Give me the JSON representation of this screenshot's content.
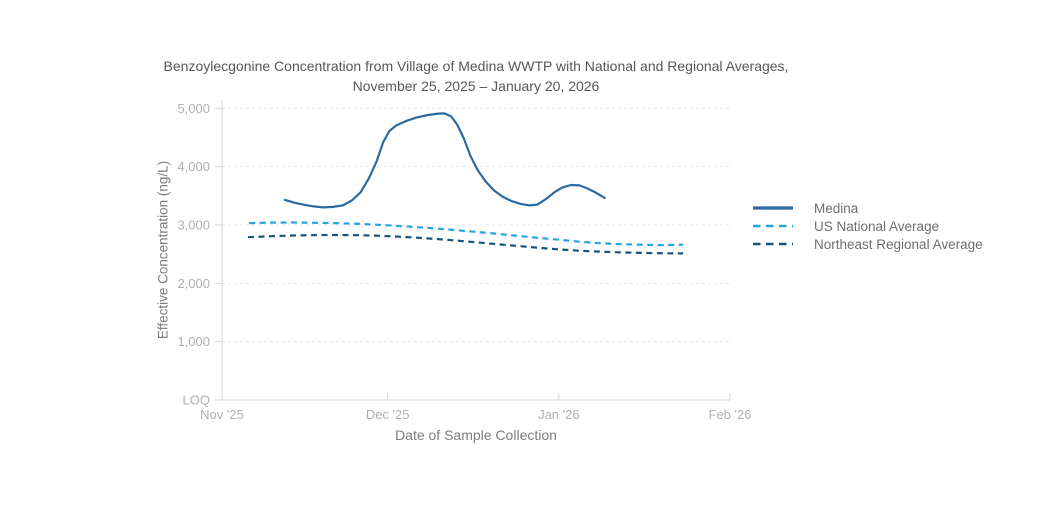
{
  "chart": {
    "title_line1": "Benzoylecgonine Concentration from Village of Medina WWTP with National and Regional Averages,",
    "title_line2": "November 25, 2025 – January 20, 2026",
    "x_axis_title": "Date of Sample Collection",
    "y_axis_title": "Effective Concentration (ng/L)"
  },
  "colors": {
    "medina_line": "#2a6a9e",
    "us_national_line": "#25a4dd",
    "northeast_line": "#14567d",
    "gridline": "#e4e4e4",
    "axis_line": "#d6d6d6",
    "tick_label": "#b0b0b0",
    "axis_title": "#7d7d7d",
    "title_text": "#575757",
    "legend_text": "#6e6e6e",
    "background": "#ffffff"
  },
  "chart_data": {
    "type": "line",
    "title": "Benzoylecgonine Concentration from Village of Medina WWTP with National and Regional Averages, November 25, 2025 – January 20, 2026",
    "xlabel": "Date of Sample Collection",
    "ylabel": "Effective Concentration (ng/L)",
    "x_unit": "days since 2025-11-01",
    "xlim": [
      0,
      92
    ],
    "ylim": [
      0,
      5000
    ],
    "grid": "horizontal-dashed",
    "legend_position": "right",
    "x_ticks": [
      {
        "d": 0,
        "label": "Nov '25"
      },
      {
        "d": 30,
        "label": "Dec '25"
      },
      {
        "d": 61,
        "label": "Jan '26"
      },
      {
        "d": 92,
        "label": "Feb '26"
      }
    ],
    "y_ticks": [
      {
        "v": 0,
        "label": "LOQ"
      },
      {
        "v": 1000,
        "label": "1,000"
      },
      {
        "v": 2000,
        "label": "2,000"
      },
      {
        "v": 3000,
        "label": "3,000"
      },
      {
        "v": 4000,
        "label": "4,000"
      },
      {
        "v": 5000,
        "label": "5,000"
      }
    ],
    "series": [
      {
        "name": "Medina",
        "color": "#2a6a9e",
        "dash": "solid",
        "points": [
          [
            11.4,
            3430
          ],
          [
            13.2,
            3380
          ],
          [
            15.0,
            3345
          ],
          [
            16.6,
            3318
          ],
          [
            18.3,
            3302
          ],
          [
            20.1,
            3310
          ],
          [
            21.9,
            3335
          ],
          [
            23.5,
            3420
          ],
          [
            25.1,
            3560
          ],
          [
            26.6,
            3800
          ],
          [
            28.0,
            4090
          ],
          [
            29.2,
            4420
          ],
          [
            30.3,
            4610
          ],
          [
            31.6,
            4710
          ],
          [
            33.3,
            4780
          ],
          [
            35.2,
            4840
          ],
          [
            37.3,
            4885
          ],
          [
            39.2,
            4910
          ],
          [
            40.3,
            4912
          ],
          [
            41.5,
            4860
          ],
          [
            42.6,
            4720
          ],
          [
            43.8,
            4480
          ],
          [
            45.0,
            4180
          ],
          [
            46.3,
            3940
          ],
          [
            47.8,
            3740
          ],
          [
            49.3,
            3590
          ],
          [
            50.9,
            3480
          ],
          [
            52.5,
            3408
          ],
          [
            54.1,
            3362
          ],
          [
            55.7,
            3335
          ],
          [
            57.1,
            3350
          ],
          [
            58.6,
            3440
          ],
          [
            60.1,
            3555
          ],
          [
            61.6,
            3640
          ],
          [
            63.2,
            3685
          ],
          [
            64.7,
            3678
          ],
          [
            66.2,
            3625
          ],
          [
            67.8,
            3550
          ],
          [
            69.3,
            3465
          ]
        ]
      },
      {
        "name": "US National Average",
        "color": "#25a4dd",
        "dash": "dash",
        "points": [
          [
            4.9,
            3030
          ],
          [
            9,
            3040
          ],
          [
            13,
            3042
          ],
          [
            17,
            3038
          ],
          [
            21,
            3030
          ],
          [
            25,
            3018
          ],
          [
            29,
            3000
          ],
          [
            33,
            2978
          ],
          [
            37,
            2952
          ],
          [
            41,
            2922
          ],
          [
            45,
            2890
          ],
          [
            49,
            2855
          ],
          [
            53,
            2818
          ],
          [
            57,
            2782
          ],
          [
            61,
            2748
          ],
          [
            65,
            2712
          ],
          [
            69,
            2685
          ],
          [
            73,
            2668
          ],
          [
            77,
            2658
          ],
          [
            80,
            2655
          ],
          [
            83.5,
            2662
          ]
        ]
      },
      {
        "name": "Northeast Regional Average",
        "color": "#14567d",
        "dash": "dash",
        "points": [
          [
            4.7,
            2790
          ],
          [
            9,
            2808
          ],
          [
            13,
            2820
          ],
          [
            17,
            2826
          ],
          [
            21,
            2828
          ],
          [
            25,
            2824
          ],
          [
            29,
            2812
          ],
          [
            33,
            2795
          ],
          [
            37,
            2772
          ],
          [
            41,
            2745
          ],
          [
            45,
            2712
          ],
          [
            49,
            2678
          ],
          [
            53,
            2645
          ],
          [
            57,
            2612
          ],
          [
            61,
            2582
          ],
          [
            65,
            2558
          ],
          [
            69,
            2540
          ],
          [
            73,
            2528
          ],
          [
            77,
            2520
          ],
          [
            80,
            2515
          ],
          [
            83.5,
            2512
          ]
        ]
      }
    ]
  }
}
